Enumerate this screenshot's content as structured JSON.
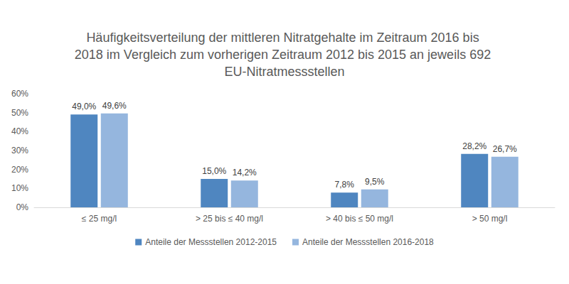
{
  "chart_data": {
    "type": "bar",
    "title": "Häufigkeitsverteilung der mittleren Nitratgehalte im Zeitraum 2016 bis 2018 im Vergleich zum vorherigen Zeitraum 2012 bis 2015 an jeweils 692 EU-Nitratmessstellen",
    "categories": [
      "≤ 25 mg/l",
      "> 25 bis ≤ 40 mg/l",
      "> 40 bis ≤ 50 mg/l",
      "> 50 mg/l"
    ],
    "series": [
      {
        "name": "Anteile der Messstellen 2012-2015",
        "color": "#4f86c0",
        "values": [
          49.0,
          15.0,
          7.8,
          28.2
        ],
        "value_labels": [
          "49,0%",
          "15,0%",
          "7,8%",
          "28,2%"
        ]
      },
      {
        "name": "Anteile der Messstellen 2016-2018",
        "color": "#95b6de",
        "values": [
          49.6,
          14.2,
          9.5,
          26.7
        ],
        "value_labels": [
          "49,6%",
          "14,2%",
          "9,5%",
          "26,7%"
        ]
      }
    ],
    "ylim": [
      0,
      60
    ],
    "yticks": [
      {
        "value": 0,
        "label": "0%"
      },
      {
        "value": 10,
        "label": "10%"
      },
      {
        "value": 20,
        "label": "20%"
      },
      {
        "value": 30,
        "label": "30%"
      },
      {
        "value": 40,
        "label": "40%"
      },
      {
        "value": 50,
        "label": "50%"
      },
      {
        "value": 60,
        "label": "60%"
      }
    ],
    "grid": false,
    "legend": "bottom",
    "data_labels": true
  }
}
